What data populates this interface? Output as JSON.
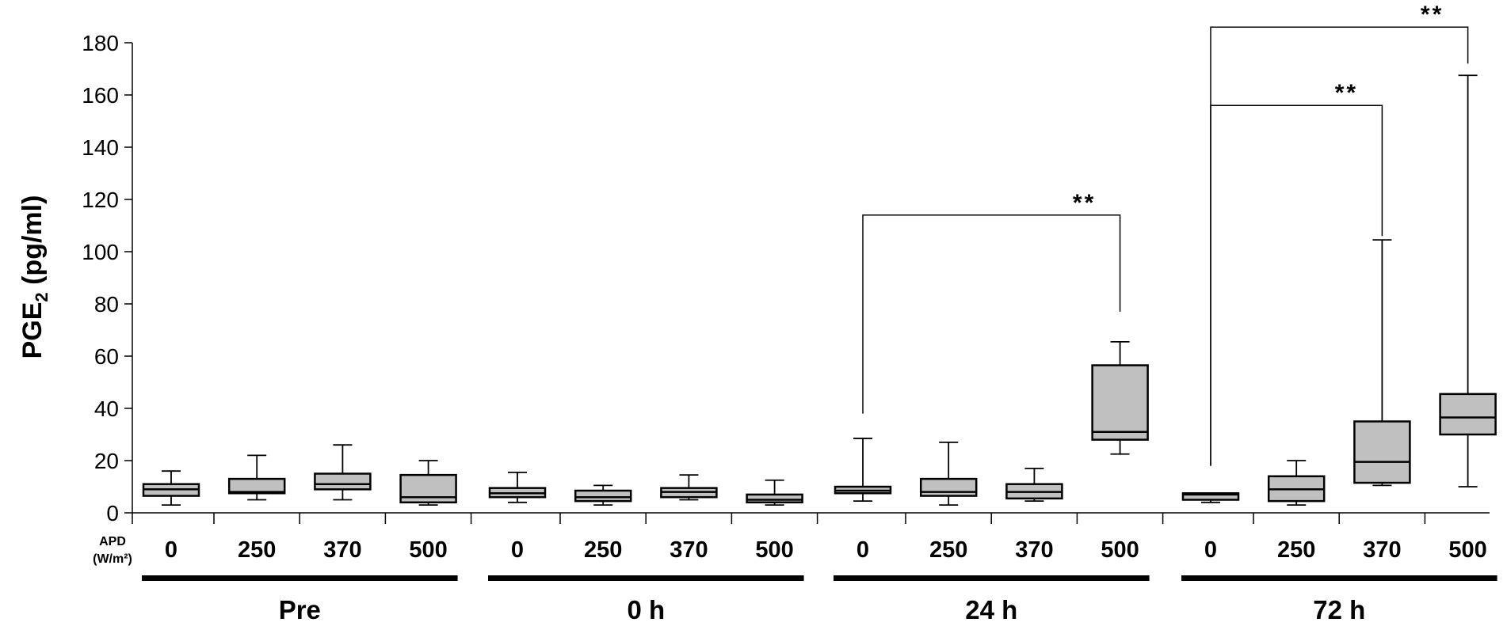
{
  "chart_data": {
    "type": "box",
    "ylabel_main": "PGE",
    "ylabel_sub": "2",
    "ylabel_tail": " (pg/ml)",
    "ylim": [
      0,
      180
    ],
    "yticks": [
      "0",
      "20",
      "40",
      "60",
      "80",
      "100",
      "120",
      "140",
      "160",
      "180"
    ],
    "apd_label_line1": "APD",
    "apd_label_line2": "(W/m²)",
    "groups": [
      {
        "label": "Pre",
        "boxes": [
          {
            "category": "0",
            "min": 3,
            "q1": 6.5,
            "median": 9,
            "q3": 11,
            "max": 16
          },
          {
            "category": "250",
            "min": 5,
            "q1": 7.5,
            "median": 8,
            "q3": 13,
            "max": 22
          },
          {
            "category": "370",
            "min": 5,
            "q1": 9,
            "median": 11,
            "q3": 15,
            "max": 26
          },
          {
            "category": "500",
            "min": 3,
            "q1": 4,
            "median": 6,
            "q3": 14.5,
            "max": 20
          }
        ]
      },
      {
        "label": "0 h",
        "boxes": [
          {
            "category": "0",
            "min": 4,
            "q1": 6,
            "median": 7.5,
            "q3": 9.5,
            "max": 15.5
          },
          {
            "category": "250",
            "min": 3,
            "q1": 4.5,
            "median": 6,
            "q3": 8.5,
            "max": 10.5
          },
          {
            "category": "370",
            "min": 5,
            "q1": 6,
            "median": 8,
            "q3": 9.5,
            "max": 14.5
          },
          {
            "category": "500",
            "min": 3,
            "q1": 4,
            "median": 5,
            "q3": 7,
            "max": 12.5
          }
        ]
      },
      {
        "label": "24 h",
        "boxes": [
          {
            "category": "0",
            "min": 4.5,
            "q1": 7.5,
            "median": 8.5,
            "q3": 10,
            "max": 28.5
          },
          {
            "category": "250",
            "min": 3,
            "q1": 6.5,
            "median": 8,
            "q3": 13,
            "max": 27
          },
          {
            "category": "370",
            "min": 4.5,
            "q1": 5.5,
            "median": 8,
            "q3": 11,
            "max": 17
          },
          {
            "category": "500",
            "min": 22.5,
            "q1": 28,
            "median": 31,
            "q3": 56.5,
            "max": 65.5
          }
        ]
      },
      {
        "label": "72 h",
        "boxes": [
          {
            "category": "0",
            "min": 4,
            "q1": 5,
            "median": 7,
            "q3": 7.5,
            "max": 7.5
          },
          {
            "category": "250",
            "min": 3,
            "q1": 4.5,
            "median": 9,
            "q3": 14,
            "max": 20
          },
          {
            "category": "370",
            "min": 10.5,
            "q1": 11.5,
            "median": 19.5,
            "q3": 35,
            "max": 104.5
          },
          {
            "category": "500",
            "min": 10,
            "q1": 30,
            "median": 36.5,
            "q3": 45.5,
            "max": 167.5
          }
        ]
      }
    ],
    "significance": [
      {
        "group": 2,
        "from": 0,
        "to": 3,
        "bracket_y": 114,
        "left_end": 38,
        "right_end": 77,
        "label": "**"
      },
      {
        "group": 3,
        "from": 0,
        "to": 2,
        "bracket_y": 156,
        "left_end": 18,
        "right_end": 106,
        "label": "**"
      },
      {
        "group": 3,
        "from": 0,
        "to": 3,
        "bracket_y": 186,
        "left_end": 18,
        "right_end": 172,
        "label": "**"
      }
    ]
  }
}
